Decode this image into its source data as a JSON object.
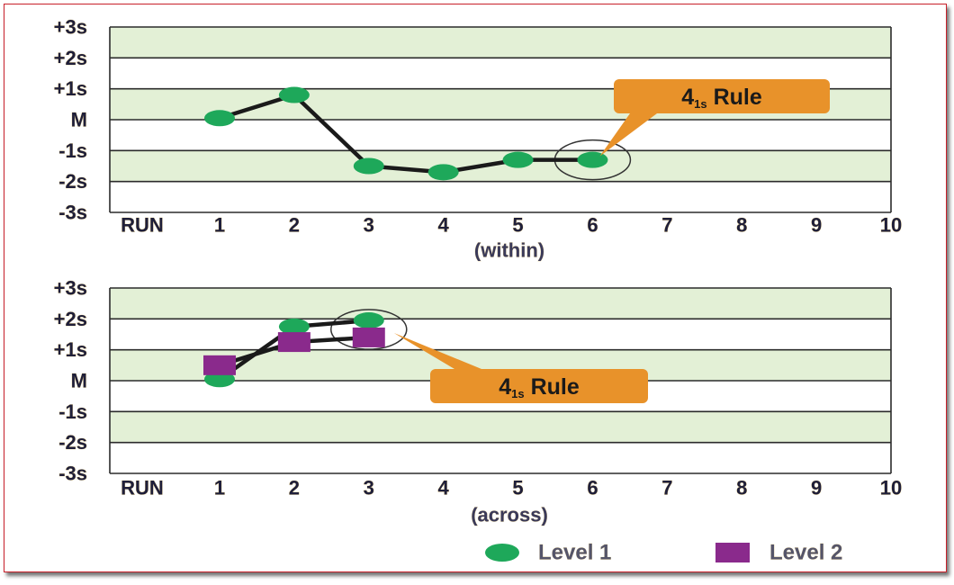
{
  "chart_data": [
    {
      "type": "line",
      "xlabel": "(within)",
      "x_axis_title": "RUN",
      "categories": [
        "1",
        "2",
        "3",
        "4",
        "5",
        "6",
        "7",
        "8",
        "9",
        "10"
      ],
      "y_ticks": [
        "+3s",
        "+2s",
        "+1s",
        "M",
        "-1s",
        "-2s",
        "-3s"
      ],
      "ylim": [
        -3,
        3
      ],
      "series": [
        {
          "name": "Level 1",
          "marker": "circle",
          "color": "#1ea85a",
          "x": [
            1,
            2,
            3,
            4,
            5,
            6
          ],
          "y": [
            0.05,
            0.8,
            -1.5,
            -1.7,
            -1.3,
            -1.3
          ]
        }
      ],
      "annotation": {
        "text": "4",
        "subscript": "1s",
        "suffix": " Rule",
        "target_run": 6
      }
    },
    {
      "type": "line",
      "xlabel": "(across)",
      "x_axis_title": "RUN",
      "categories": [
        "1",
        "2",
        "3",
        "4",
        "5",
        "6",
        "7",
        "8",
        "9",
        "10"
      ],
      "y_ticks": [
        "+3s",
        "+2s",
        "+1s",
        "M",
        "-1s",
        "-2s",
        "-3s"
      ],
      "ylim": [
        -3,
        3
      ],
      "series": [
        {
          "name": "Level 1",
          "marker": "circle",
          "color": "#1ea85a",
          "x": [
            1,
            2,
            3
          ],
          "y": [
            0.05,
            1.75,
            1.95
          ]
        },
        {
          "name": "Level 2",
          "marker": "square",
          "color": "#8a2a8c",
          "x": [
            1,
            2,
            3
          ],
          "y": [
            0.5,
            1.25,
            1.4
          ]
        }
      ],
      "annotation": {
        "text": "4",
        "subscript": "1s",
        "suffix": " Rule",
        "target_run": 3
      }
    }
  ],
  "legend": [
    {
      "label": "Level 1",
      "marker": "circle",
      "color": "#1ea85a"
    },
    {
      "label": "Level 2",
      "marker": "square",
      "color": "#8a2a8c"
    }
  ],
  "colors": {
    "band": "#e3f0d6",
    "grid": "#2b2b2b",
    "line": "#1a1a1a",
    "callout": "#e8922a",
    "tick_text": "#1f1f3a",
    "axis_text_outline": "#f0d58a"
  }
}
